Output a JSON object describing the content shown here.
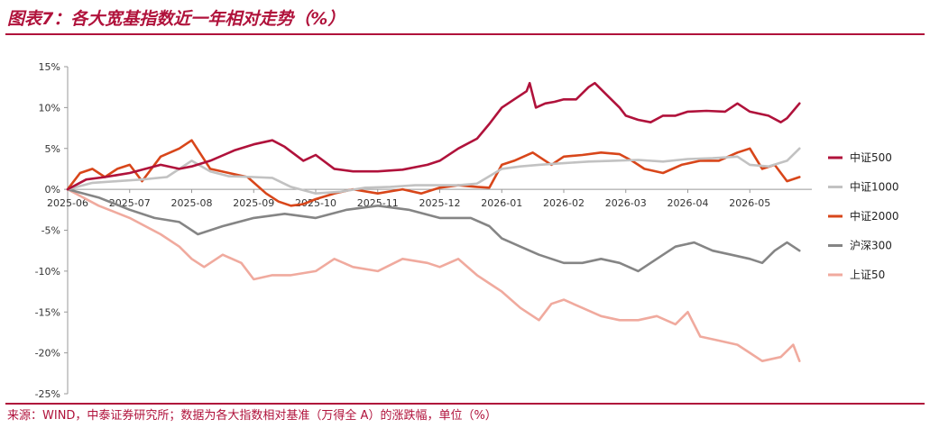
{
  "title": "图表7：各大宽基指数近一年相对走势（%）",
  "source": "来源：WIND，中泰证券研究所；数据为各大指数相对基准（万得全 A）的涨跌幅，单位（%）",
  "colors": {
    "accent": "#b0123b"
  },
  "chart_data": {
    "type": "line",
    "title": "图表7：各大宽基指数近一年相对走势（%）",
    "xlabel": "",
    "ylabel": "",
    "ylim": [
      -25,
      15
    ],
    "yticks": [
      15,
      10,
      5,
      0,
      -5,
      -10,
      -15,
      -20,
      -25
    ],
    "ytick_labels": [
      "15%",
      "10%",
      "5%",
      "0%",
      "-5%",
      "-10%",
      "-15%",
      "-20%",
      "-25%"
    ],
    "xlim": [
      0,
      12
    ],
    "xticks": [
      0,
      1,
      2,
      3,
      4,
      5,
      6,
      7,
      8,
      9,
      10,
      11
    ],
    "xtick_labels": [
      "2025-06",
      "2025-07",
      "2025-08",
      "2025-09",
      "2025-10",
      "2025-11",
      "2025-12",
      "2026-01",
      "2026-02",
      "2026-03",
      "2026-04",
      "2026-05"
    ],
    "grid": false,
    "legend": "right",
    "series": [
      {
        "name": "中证500",
        "color": "#b0123b",
        "x": [
          0,
          0.3,
          0.6,
          1.0,
          1.5,
          1.8,
          2.0,
          2.3,
          2.7,
          3.0,
          3.3,
          3.5,
          3.8,
          4.0,
          4.3,
          4.6,
          5.0,
          5.4,
          5.8,
          6.0,
          6.3,
          6.6,
          6.8,
          7.0,
          7.2,
          7.4,
          7.45,
          7.55,
          7.7,
          7.85,
          8.0,
          8.2,
          8.4,
          8.5,
          8.7,
          8.9,
          9.0,
          9.2,
          9.4,
          9.6,
          9.8,
          10.0,
          10.3,
          10.6,
          10.8,
          11.0,
          11.3,
          11.5,
          11.6,
          11.8
        ],
        "values": [
          0,
          1.2,
          1.5,
          2.0,
          3.0,
          2.5,
          2.8,
          3.5,
          4.8,
          5.5,
          6.0,
          5.2,
          3.5,
          4.2,
          2.5,
          2.2,
          2.2,
          2.4,
          3.0,
          3.5,
          5.0,
          6.2,
          8.0,
          10.0,
          11.0,
          12.0,
          13.0,
          10.0,
          10.5,
          10.7,
          11.0,
          11.0,
          12.5,
          13.0,
          11.5,
          10.0,
          9.0,
          8.5,
          8.2,
          9.0,
          9.0,
          9.5,
          9.6,
          9.5,
          10.5,
          9.5,
          9.0,
          8.2,
          8.7,
          10.5
        ]
      },
      {
        "name": "中证1000",
        "color": "#c2c2c2",
        "x": [
          0,
          0.4,
          0.8,
          1.2,
          1.6,
          2.0,
          2.3,
          2.6,
          3.0,
          3.3,
          3.6,
          4.0,
          4.4,
          4.8,
          5.2,
          5.6,
          6.0,
          6.3,
          6.6,
          7.0,
          7.3,
          7.6,
          8.0,
          8.4,
          8.8,
          9.2,
          9.6,
          10.0,
          10.4,
          10.8,
          11.0,
          11.3,
          11.6,
          11.8
        ],
        "values": [
          0,
          0.8,
          1.0,
          1.2,
          1.5,
          3.5,
          2.2,
          1.6,
          1.5,
          1.4,
          0.3,
          -0.5,
          -0.3,
          0.2,
          0.3,
          0.5,
          0.5,
          0.5,
          0.7,
          2.5,
          2.8,
          3.0,
          3.2,
          3.4,
          3.5,
          3.6,
          3.4,
          3.7,
          3.8,
          4.0,
          3.0,
          2.8,
          3.5,
          5.0
        ]
      },
      {
        "name": "中证2000",
        "color": "#d8461a",
        "x": [
          0,
          0.2,
          0.4,
          0.6,
          0.8,
          1.0,
          1.2,
          1.5,
          1.8,
          2.0,
          2.3,
          2.6,
          2.9,
          3.2,
          3.4,
          3.6,
          3.8,
          4.0,
          4.3,
          4.6,
          5.0,
          5.4,
          5.7,
          6.0,
          6.3,
          6.6,
          6.8,
          7.0,
          7.2,
          7.5,
          7.8,
          8.0,
          8.3,
          8.6,
          8.9,
          9.1,
          9.3,
          9.6,
          9.9,
          10.2,
          10.5,
          10.8,
          11.0,
          11.2,
          11.4,
          11.6,
          11.8
        ],
        "values": [
          0,
          2.0,
          2.5,
          1.5,
          2.5,
          3.0,
          1.0,
          4.0,
          5.0,
          6.0,
          2.5,
          2.0,
          1.5,
          -0.5,
          -1.5,
          -2.0,
          -1.8,
          -1.2,
          -0.5,
          0,
          -0.5,
          0,
          -0.5,
          0.2,
          0.5,
          0.3,
          0.2,
          3.0,
          3.5,
          4.5,
          3.0,
          4.0,
          4.2,
          4.5,
          4.3,
          3.5,
          2.5,
          2.0,
          3.0,
          3.5,
          3.5,
          4.5,
          5.0,
          2.5,
          3.0,
          1.0,
          1.5
        ]
      },
      {
        "name": "沪深300",
        "color": "#858585",
        "x": [
          0,
          0.5,
          1.0,
          1.4,
          1.8,
          2.1,
          2.5,
          3.0,
          3.5,
          4.0,
          4.5,
          5.0,
          5.5,
          6.0,
          6.5,
          6.8,
          7.0,
          7.3,
          7.6,
          8.0,
          8.3,
          8.6,
          8.9,
          9.2,
          9.5,
          9.8,
          10.1,
          10.4,
          10.7,
          11.0,
          11.2,
          11.4,
          11.6,
          11.8
        ],
        "values": [
          0,
          -1.0,
          -2.5,
          -3.5,
          -4.0,
          -5.5,
          -4.5,
          -3.5,
          -3.0,
          -3.5,
          -2.5,
          -2.0,
          -2.5,
          -3.5,
          -3.5,
          -4.5,
          -6.0,
          -7.0,
          -8.0,
          -9.0,
          -9.0,
          -8.5,
          -9.0,
          -10.0,
          -8.5,
          -7.0,
          -6.5,
          -7.5,
          -8.0,
          -8.5,
          -9.0,
          -7.5,
          -6.5,
          -7.5
        ]
      },
      {
        "name": "上证50",
        "color": "#f0aa9e",
        "x": [
          0,
          0.5,
          1.0,
          1.5,
          1.8,
          2.0,
          2.2,
          2.5,
          2.8,
          3.0,
          3.3,
          3.6,
          4.0,
          4.3,
          4.6,
          5.0,
          5.4,
          5.8,
          6.0,
          6.3,
          6.6,
          6.8,
          7.0,
          7.3,
          7.6,
          7.8,
          8.0,
          8.3,
          8.6,
          8.9,
          9.2,
          9.5,
          9.8,
          10.0,
          10.2,
          10.5,
          10.8,
          11.0,
          11.2,
          11.5,
          11.7,
          11.8
        ],
        "values": [
          0,
          -2.0,
          -3.5,
          -5.5,
          -7.0,
          -8.5,
          -9.5,
          -8.0,
          -9.0,
          -11.0,
          -10.5,
          -10.5,
          -10.0,
          -8.5,
          -9.5,
          -10.0,
          -8.5,
          -9.0,
          -9.5,
          -8.5,
          -10.5,
          -11.5,
          -12.5,
          -14.5,
          -16.0,
          -14.0,
          -13.5,
          -14.5,
          -15.5,
          -16.0,
          -16.0,
          -15.5,
          -16.5,
          -15.0,
          -18.0,
          -18.5,
          -19.0,
          -20.0,
          -21.0,
          -20.5,
          -19.0,
          -21.0
        ]
      }
    ]
  }
}
